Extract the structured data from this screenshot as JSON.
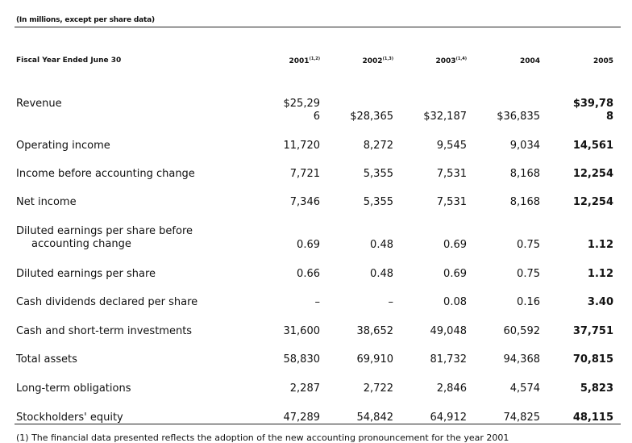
{
  "caption": "(In millions, except per share data)",
  "header": {
    "label": "Fiscal Year Ended June 30",
    "years": [
      {
        "year": "2001",
        "note": "(1,2)"
      },
      {
        "year": "2002",
        "note": "(1,3)"
      },
      {
        "year": "2003",
        "note": "(1,4)"
      },
      {
        "year": "2004",
        "note": ""
      },
      {
        "year": "2005",
        "note": ""
      }
    ]
  },
  "rows": [
    {
      "label": "Revenue",
      "values": [
        "$25,29\n6",
        "$28,365",
        "$32,187",
        "$36,835",
        "$39,78\n8"
      ]
    },
    {
      "label": "Operating income",
      "values": [
        "11,720",
        "8,272",
        "9,545",
        "9,034",
        "14,561"
      ]
    },
    {
      "label": "Income before accounting change",
      "values": [
        "7,721",
        "5,355",
        "7,531",
        "8,168",
        "12,254"
      ]
    },
    {
      "label": "Net income",
      "values": [
        "7,346",
        "5,355",
        "7,531",
        "8,168",
        "12,254"
      ]
    },
    {
      "label_line1": "Diluted earnings per share before",
      "label_line2": "accounting change",
      "values": [
        "0.69",
        "0.48",
        "0.69",
        "0.75",
        "1.12"
      ]
    },
    {
      "label": "Diluted earnings per share",
      "values": [
        "0.66",
        "0.48",
        "0.69",
        "0.75",
        "1.12"
      ]
    },
    {
      "label": "Cash dividends declared per share",
      "values": [
        "–",
        "–",
        "0.08",
        "0.16",
        "3.40"
      ]
    },
    {
      "label": "Cash and short-term investments",
      "values": [
        "31,600",
        "38,652",
        "49,048",
        "60,592",
        "37,751"
      ]
    },
    {
      "label": "Total assets",
      "values": [
        "58,830",
        "69,910",
        "81,732",
        "94,368",
        "70,815"
      ]
    },
    {
      "label": "Long-term obligations",
      "values": [
        "2,287",
        "2,722",
        "2,846",
        "4,574",
        "5,823"
      ]
    },
    {
      "label": "Stockholders' equity",
      "values": [
        "47,289",
        "54,842",
        "64,912",
        "74,825",
        "48,115"
      ]
    }
  ],
  "footnote": "(1)  The financial data presented reflects the adoption of the new accounting pronouncement for the year 2001"
}
